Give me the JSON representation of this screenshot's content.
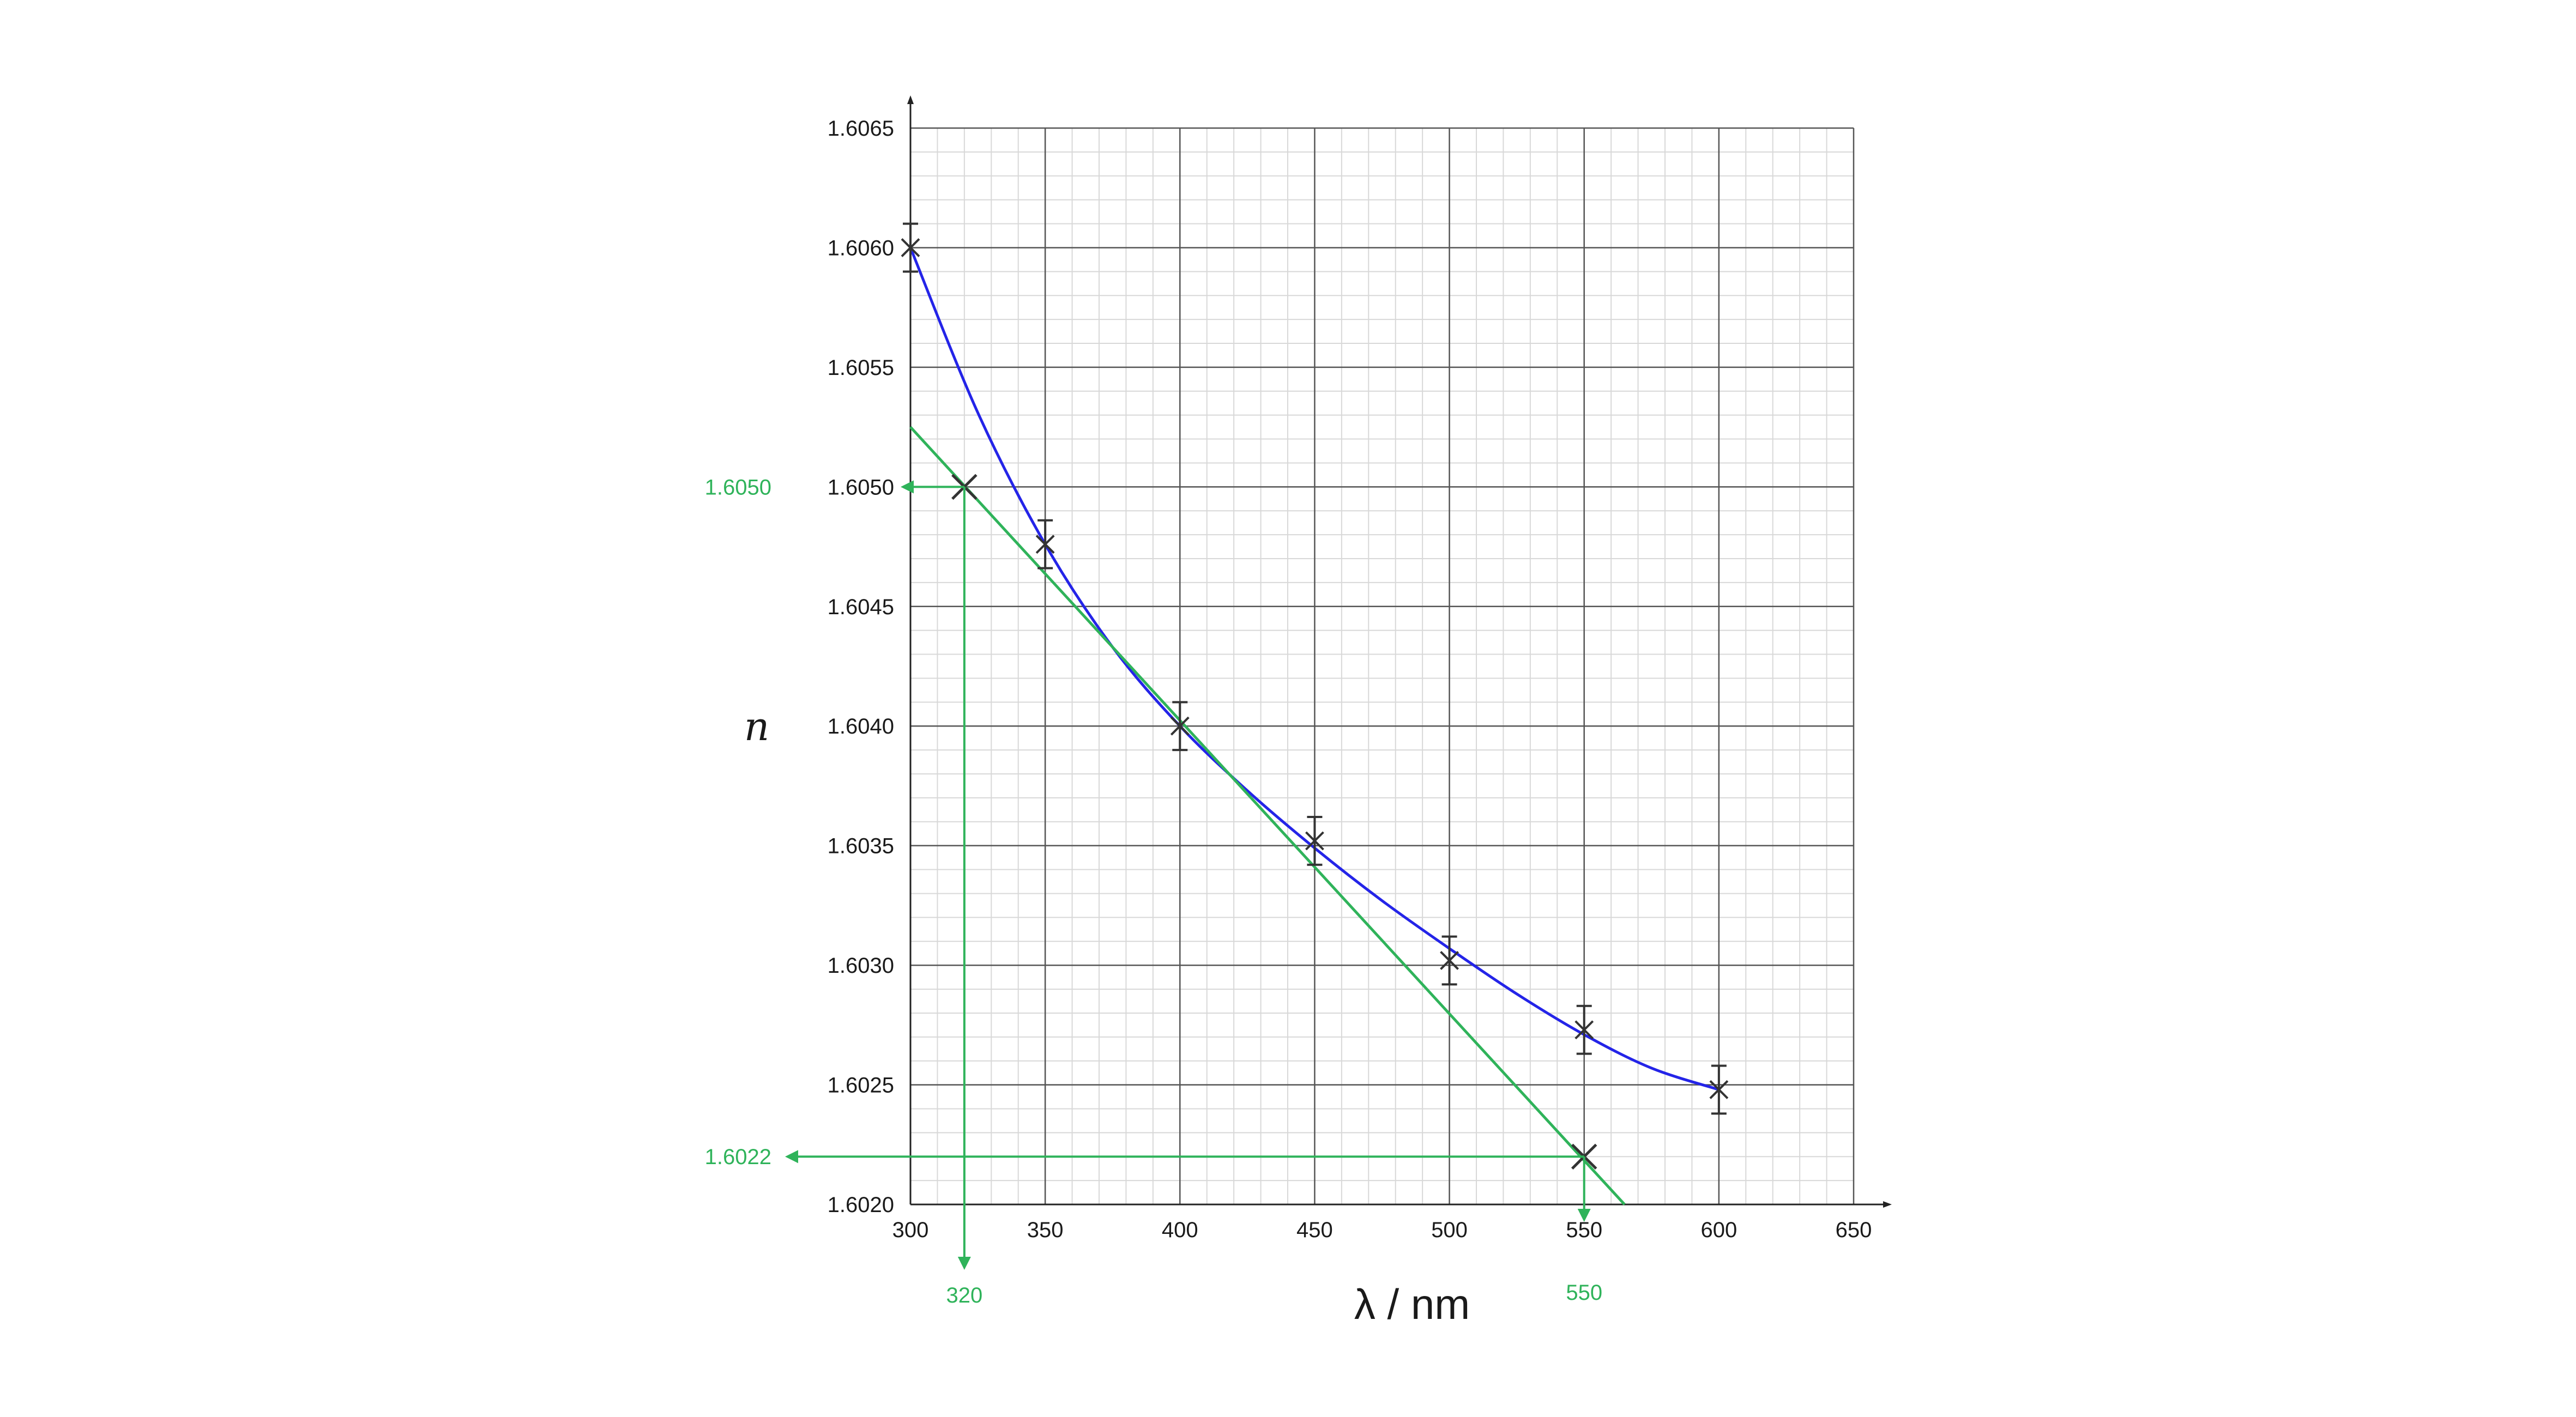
{
  "chart_data": {
    "type": "scatter",
    "xlabel": "λ / nm",
    "ylabel": "n",
    "xlim": [
      300,
      650
    ],
    "ylim": [
      1.602,
      1.6065
    ],
    "x_ticks": [
      "300",
      "350",
      "400",
      "450",
      "500",
      "550",
      "600",
      "650"
    ],
    "y_ticks": [
      "1.6020",
      "1.6025",
      "1.6030",
      "1.6035",
      "1.6040",
      "1.6045",
      "1.6050",
      "1.6055",
      "1.6060",
      "1.6065"
    ],
    "grid": true,
    "points": [
      {
        "x": 300,
        "y": 1.606,
        "err": 0.0001
      },
      {
        "x": 350,
        "y": 1.60476,
        "err": 0.0001
      },
      {
        "x": 400,
        "y": 1.604,
        "err": 0.0001
      },
      {
        "x": 450,
        "y": 1.60352,
        "err": 0.0001
      },
      {
        "x": 500,
        "y": 1.60302,
        "err": 0.0001
      },
      {
        "x": 550,
        "y": 1.60273,
        "err": 0.0001
      },
      {
        "x": 600,
        "y": 1.60248,
        "err": 0.0001
      }
    ],
    "fit_curve": {
      "color": "#2424e8",
      "points": [
        [
          300,
          1.606
        ],
        [
          325,
          1.60531
        ],
        [
          350,
          1.60476
        ],
        [
          375,
          1.60433
        ],
        [
          400,
          1.604
        ],
        [
          425,
          1.60373
        ],
        [
          450,
          1.60349
        ],
        [
          475,
          1.60327
        ],
        [
          500,
          1.60307
        ],
        [
          525,
          1.60288
        ],
        [
          550,
          1.60271
        ],
        [
          575,
          1.60257
        ],
        [
          600,
          1.60248
        ]
      ]
    },
    "tangent_line": {
      "color": "#2fb35a",
      "x": [
        300,
        565
      ],
      "y": [
        1.60525,
        1.602
      ]
    },
    "tangent_markers": [
      {
        "x": 320,
        "y": 1.605
      },
      {
        "x": 550,
        "y": 1.6022
      }
    ],
    "annotations": {
      "y_upper": {
        "label": "1.6050",
        "value": 1.605
      },
      "y_lower": {
        "label": "1.6022",
        "value": 1.6022
      },
      "x_left": {
        "label": "320",
        "value": 320
      },
      "x_right": {
        "label": "550",
        "value": 550
      }
    },
    "colors": {
      "grid_major": "#555555",
      "grid_minor": "#d8d8d8",
      "points": "#333333"
    }
  }
}
